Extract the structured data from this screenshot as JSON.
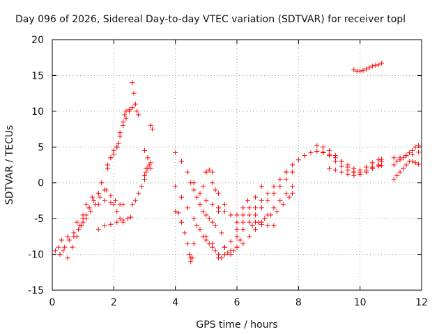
{
  "chart_data": {
    "type": "scatter",
    "title": "Day 096 of 2026, Sidereal Day-to-day VTEC variation (SDTVAR) for receiver topl",
    "xlabel": "GPS time / hours",
    "ylabel": "SDTVAR / TECUs",
    "xlim": [
      0,
      12
    ],
    "ylim": [
      -15,
      20
    ],
    "x_ticks": [
      0,
      2,
      4,
      6,
      8,
      10,
      12
    ],
    "y_ticks": [
      -15,
      -10,
      -5,
      0,
      5,
      10,
      15,
      20
    ],
    "x_tick_labels": [
      "0",
      "2",
      "4",
      "6",
      "8",
      "10",
      "12"
    ],
    "y_tick_labels": [
      "-15",
      "-10",
      "-5",
      "0",
      "5",
      "10",
      "15",
      "20"
    ],
    "grid": true,
    "marker": "+",
    "marker_color": "#ff0000",
    "series": [
      {
        "name": "s1",
        "x": [
          0.1,
          0.25,
          0.4,
          0.55,
          0.7,
          0.85,
          1.0,
          1.1,
          1.2
        ],
        "y": [
          -9.5,
          -10,
          -9,
          -8,
          -7.5,
          -6.5,
          -5.5,
          -4.5,
          -3.5
        ]
      },
      {
        "name": "s2",
        "x": [
          0.2,
          0.35,
          0.5,
          0.65,
          0.8,
          0.95,
          1.1,
          1.25,
          1.4,
          1.55
        ],
        "y": [
          -9,
          -9.5,
          -10.5,
          -9,
          -7.5,
          -6,
          -5,
          -4,
          -3,
          -2
        ]
      },
      {
        "name": "s3",
        "x": [
          0.3,
          0.5,
          0.7,
          0.9,
          1.0,
          1.1,
          1.3,
          1.5,
          1.7
        ],
        "y": [
          -8,
          -7.5,
          -7,
          -6,
          -5,
          -3,
          -2,
          -1.5,
          -1
        ]
      },
      {
        "name": "s4",
        "x": [
          0.8,
          1.0,
          1.2,
          1.35,
          1.5,
          1.6,
          1.75,
          1.9,
          2.05,
          2.2,
          2.3
        ],
        "y": [
          -5.5,
          -4.5,
          -3.5,
          -2.5,
          -1.5,
          0,
          -1,
          -1.8,
          -2.5,
          -3,
          -3
        ]
      },
      {
        "name": "s5",
        "x": [
          1.5,
          1.7,
          1.9,
          2.0,
          2.1,
          2.2,
          2.3
        ],
        "y": [
          -3,
          -2.5,
          -2.8,
          -3,
          -4,
          -5,
          -5.2
        ]
      },
      {
        "name": "s6",
        "x": [
          1.5,
          1.7,
          1.9,
          2.1,
          2.3,
          2.45,
          2.55
        ],
        "y": [
          -6.5,
          -6,
          -5.8,
          -5.5,
          -5.5,
          -5,
          -4.8
        ]
      },
      {
        "name": "s7",
        "x": [
          1.8,
          1.9,
          2.0,
          2.1,
          2.15,
          2.2,
          2.3,
          2.35,
          2.4,
          2.5
        ],
        "y": [
          2,
          3.5,
          4.5,
          5,
          5.5,
          7,
          8.5,
          9.5,
          10,
          10.2
        ]
      },
      {
        "name": "s8",
        "x": [
          1.8,
          1.9,
          2.0,
          2.1,
          2.2,
          2.3,
          2.4,
          2.5,
          2.6,
          2.7
        ],
        "y": [
          2.5,
          3.5,
          4,
          5,
          6.5,
          8,
          9,
          10,
          10.5,
          11
        ]
      },
      {
        "name": "s9",
        "x": [
          2.6,
          2.65,
          2.7,
          2.75,
          2.8
        ],
        "y": [
          14,
          12.5,
          11,
          10,
          9.5
        ]
      },
      {
        "name": "s10",
        "x": [
          2.6,
          2.7,
          2.8,
          2.9,
          3.0,
          3.05
        ],
        "y": [
          -3,
          -2.5,
          -1.5,
          -0.5,
          0.5,
          2
        ]
      },
      {
        "name": "s11",
        "x": [
          3.0,
          3.05,
          3.1,
          3.15,
          3.2
        ],
        "y": [
          1,
          1.5,
          2,
          2.5,
          2.8
        ]
      },
      {
        "name": "s12",
        "x": [
          3.0,
          3.1,
          3.2
        ],
        "y": [
          4.5,
          3.5,
          2
        ]
      },
      {
        "name": "s13",
        "x": [
          3.2,
          3.25
        ],
        "y": [
          8,
          7.5
        ]
      },
      {
        "name": "s14",
        "x": [
          4.0,
          4.1,
          4.2,
          4.3,
          4.4,
          4.45,
          4.5,
          4.55
        ],
        "y": [
          -4,
          -4.2,
          -5.5,
          -7,
          -8.5,
          -10,
          -11,
          -10.5
        ]
      },
      {
        "name": "s15",
        "x": [
          4.5,
          4.6,
          4.7,
          4.8,
          4.9,
          5.0,
          5.1,
          5.2,
          5.3,
          5.4,
          5.5,
          5.6,
          5.7,
          5.8,
          5.9,
          6.0,
          6.1
        ],
        "y": [
          -10.5,
          -8.5,
          -6,
          -3,
          -0.5,
          1.5,
          1.8,
          1.5,
          -1,
          -4,
          -7,
          -9,
          -9.8,
          -10,
          -9.5,
          -9,
          -8
        ]
      },
      {
        "name": "s16",
        "x": [
          4.0,
          4.2,
          4.4,
          4.6,
          4.8,
          5.0,
          5.2
        ],
        "y": [
          -0.5,
          -2,
          -3.5,
          -5,
          -6.5,
          -7.5,
          -8.5
        ]
      },
      {
        "name": "s17",
        "x": [
          4.5,
          4.6,
          4.7,
          4.8,
          4.9,
          5.0,
          5.1,
          5.2,
          5.3
        ],
        "y": [
          0,
          -1,
          -2,
          -3,
          -4,
          -4.5,
          -5,
          -5.5,
          -6
        ]
      },
      {
        "name": "s18",
        "x": [
          4.9,
          5.0,
          5.1,
          5.2,
          5.3,
          5.4,
          5.5
        ],
        "y": [
          -7.5,
          -8,
          -8.5,
          -9,
          -9.5,
          -10,
          -10.5
        ]
      },
      {
        "name": "s19",
        "x": [
          4.0,
          4.2,
          4.4,
          4.6,
          4.8,
          5.0,
          5.2,
          5.4,
          5.6,
          5.8,
          6.0,
          6.2,
          6.35
        ],
        "y": [
          4.2,
          3,
          1.5,
          0,
          -1.5,
          -2.5,
          -3,
          -3.5,
          -4,
          -4.5,
          -4.5,
          -3.5,
          -2.5
        ]
      },
      {
        "name": "s20",
        "x": [
          5.0,
          5.2,
          5.4,
          5.6,
          5.8,
          6.0,
          6.2,
          6.4,
          6.6,
          6.8
        ],
        "y": [
          1.5,
          0,
          -1.5,
          -3,
          -4.5,
          -5.5,
          -4.5,
          -3.5,
          -2,
          -0.5
        ]
      },
      {
        "name": "s21",
        "x": [
          5.4,
          5.6,
          5.8,
          6.0,
          6.2,
          6.4,
          6.6,
          6.8,
          7.0,
          7.2,
          7.4,
          7.6,
          7.8
        ],
        "y": [
          -10.5,
          -10,
          -9.5,
          -9,
          -8.5,
          -7.5,
          -6.5,
          -5.5,
          -4.5,
          -3.5,
          -2.5,
          -1.5,
          -0.5
        ]
      },
      {
        "name": "s22",
        "x": [
          5.6,
          5.8,
          6.0,
          6.2,
          6.4,
          6.6,
          6.8,
          7.0,
          7.2,
          7.4,
          7.6,
          7.8
        ],
        "y": [
          -9,
          -8.2,
          -7.5,
          -6.5,
          -5.5,
          -4.5,
          -3.5,
          -2.5,
          -1.5,
          -0.5,
          0.5,
          1.5
        ]
      },
      {
        "name": "s23",
        "x": [
          6.0,
          6.2,
          6.4,
          6.6,
          6.8,
          7.0,
          7.2,
          7.4,
          7.6,
          7.8
        ],
        "y": [
          -6.5,
          -5.5,
          -4.5,
          -3.5,
          -2.5,
          -1.5,
          -0.5,
          0.5,
          1.5,
          2.5
        ]
      },
      {
        "name": "s24",
        "x": [
          6.5,
          6.7,
          6.9,
          7.1,
          7.3,
          7.5,
          7.7,
          7.8
        ],
        "y": [
          -6,
          -5.5,
          -5,
          -4.5,
          -4,
          -3,
          -2,
          -1.5
        ]
      },
      {
        "name": "s25",
        "x": [
          6.6,
          6.8,
          7.0,
          7.2
        ],
        "y": [
          -5.5,
          -5.8,
          -6,
          -6
        ]
      },
      {
        "name": "s26",
        "x": [
          7.6,
          7.8,
          8.0,
          8.2,
          8.4,
          8.6,
          8.8,
          9.0,
          9.2,
          9.4,
          9.6,
          9.8,
          10.0,
          10.2,
          10.4,
          10.6,
          10.7
        ],
        "y": [
          1.5,
          2.5,
          3.2,
          3.8,
          4.2,
          4.4,
          4.2,
          4,
          3.5,
          3,
          2.5,
          2,
          1.5,
          1.8,
          2.2,
          2.5,
          3
        ]
      },
      {
        "name": "s27",
        "x": [
          8.6,
          8.8,
          9.0,
          9.2,
          9.4,
          9.6,
          9.8,
          10.0,
          10.2,
          10.4,
          10.6
        ],
        "y": [
          5.2,
          5,
          4.5,
          3.8,
          3,
          2.2,
          1.5,
          1.2,
          1.5,
          2,
          2.5
        ]
      },
      {
        "name": "s28",
        "x": [
          8.8,
          9.0,
          9.2,
          9.4,
          9.6,
          9.8,
          10.0,
          10.2,
          10.4,
          10.6,
          10.7
        ],
        "y": [
          4.3,
          3.8,
          3,
          2.3,
          1.8,
          1.5,
          1.8,
          2.2,
          2.8,
          3.2,
          3.3
        ]
      },
      {
        "name": "s29",
        "x": [
          9.0,
          9.2,
          9.4,
          9.6,
          9.8,
          10.0,
          10.2,
          10.4,
          10.6,
          10.7
        ],
        "y": [
          2,
          1.8,
          1.5,
          1.2,
          1,
          1.2,
          1.5,
          2,
          2.3,
          2.4
        ]
      },
      {
        "name": "s30",
        "x": [
          9.8,
          9.9,
          10.0,
          10.1,
          10.2,
          10.3,
          10.4,
          10.5,
          10.6,
          10.7
        ],
        "y": [
          15.8,
          15.6,
          15.6,
          15.7,
          15.9,
          16.1,
          16.3,
          16.4,
          16.5,
          16.7
        ]
      },
      {
        "name": "s31",
        "x": [
          11.1,
          11.2,
          11.3,
          11.4,
          11.5,
          11.6,
          11.7,
          11.8,
          11.9
        ],
        "y": [
          0.5,
          1,
          1.5,
          2,
          2.5,
          3,
          3,
          2.8,
          2.6
        ]
      },
      {
        "name": "s32",
        "x": [
          11.1,
          11.2,
          11.3,
          11.4,
          11.5,
          11.6,
          11.7,
          11.8,
          11.9
        ],
        "y": [
          2.5,
          3,
          3.2,
          3.5,
          3.8,
          4.2,
          4.5,
          5,
          5.2
        ]
      },
      {
        "name": "s33",
        "x": [
          11.1,
          11.3,
          11.5,
          11.7,
          11.9
        ],
        "y": [
          3.5,
          3.5,
          3.8,
          4,
          4.3
        ]
      }
    ]
  }
}
